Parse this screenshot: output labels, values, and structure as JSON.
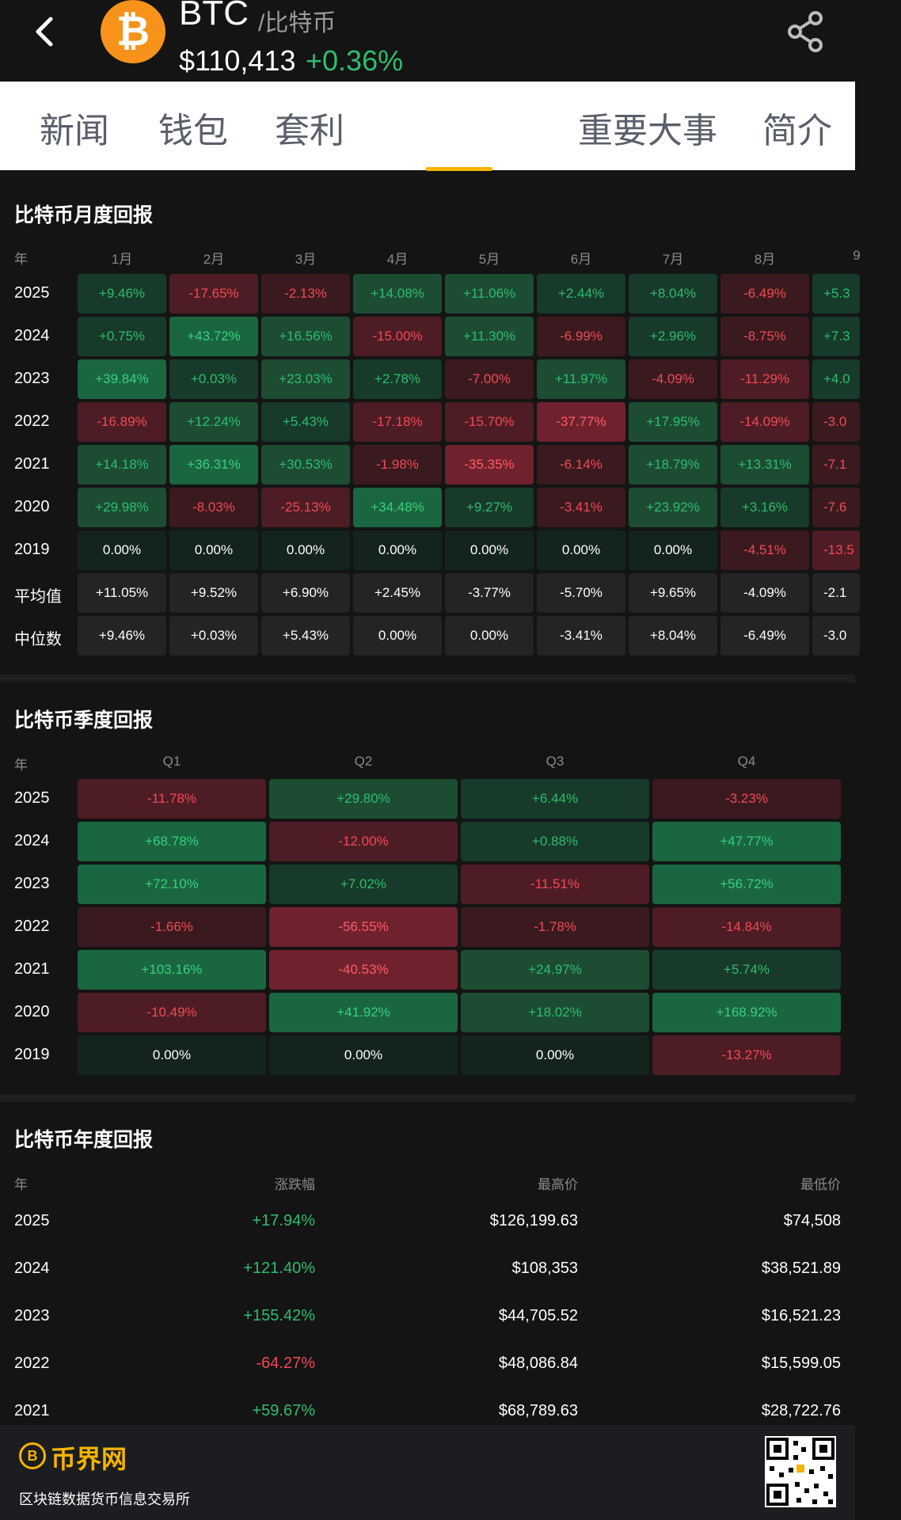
{
  "header": {
    "symbol": "BTC",
    "cn_name": "/比特币",
    "price": "$110,413",
    "change": "+0.36%",
    "logo_glyph": "₿",
    "icons": [
      "back-arrow",
      "bitcoin-logo",
      "share-icon"
    ]
  },
  "tabs": [
    {
      "label": "新闻"
    },
    {
      "label": "钱包"
    },
    {
      "label": "套利"
    },
    {
      "label": "重要大事"
    },
    {
      "label": "简介"
    }
  ],
  "monthly": {
    "title": "比特币月度回报",
    "year_header": "年",
    "months": [
      "1月",
      "2月",
      "3月",
      "4月",
      "5月",
      "6月",
      "7月",
      "8月",
      "9"
    ],
    "rows": [
      {
        "year": "2025",
        "cells": [
          [
            "+9.46%",
            "g1"
          ],
          [
            "-17.65%",
            "r2"
          ],
          [
            "-2.13%",
            "r1"
          ],
          [
            "+14.08%",
            "g2"
          ],
          [
            "+11.06%",
            "g2"
          ],
          [
            "+2.44%",
            "g1"
          ],
          [
            "+8.04%",
            "g1"
          ],
          [
            "-6.49%",
            "r1"
          ],
          [
            "+5.3",
            "g1"
          ]
        ]
      },
      {
        "year": "2024",
        "cells": [
          [
            "+0.75%",
            "g1"
          ],
          [
            "+43.72%",
            "g3"
          ],
          [
            "+16.56%",
            "g2"
          ],
          [
            "-15.00%",
            "r2"
          ],
          [
            "+11.30%",
            "g2"
          ],
          [
            "-6.99%",
            "r1"
          ],
          [
            "+2.96%",
            "g1"
          ],
          [
            "-8.75%",
            "r1"
          ],
          [
            "+7.3",
            "g1"
          ]
        ]
      },
      {
        "year": "2023",
        "cells": [
          [
            "+39.84%",
            "g3"
          ],
          [
            "+0.03%",
            "g1"
          ],
          [
            "+23.03%",
            "g2"
          ],
          [
            "+2.78%",
            "g1"
          ],
          [
            "-7.00%",
            "r1"
          ],
          [
            "+11.97%",
            "g2"
          ],
          [
            "-4.09%",
            "r1"
          ],
          [
            "-11.29%",
            "r2"
          ],
          [
            "+4.0",
            "g1"
          ]
        ]
      },
      {
        "year": "2022",
        "cells": [
          [
            "-16.89%",
            "r2"
          ],
          [
            "+12.24%",
            "g2"
          ],
          [
            "+5.43%",
            "g1"
          ],
          [
            "-17.18%",
            "r2"
          ],
          [
            "-15.70%",
            "r2"
          ],
          [
            "-37.77%",
            "r3"
          ],
          [
            "+17.95%",
            "g2"
          ],
          [
            "-14.09%",
            "r2"
          ],
          [
            "-3.0",
            "r1"
          ]
        ]
      },
      {
        "year": "2021",
        "cells": [
          [
            "+14.18%",
            "g2"
          ],
          [
            "+36.31%",
            "g3"
          ],
          [
            "+30.53%",
            "g2"
          ],
          [
            "-1.98%",
            "r1"
          ],
          [
            "-35.35%",
            "r3"
          ],
          [
            "-6.14%",
            "r1"
          ],
          [
            "+18.79%",
            "g2"
          ],
          [
            "+13.31%",
            "g2"
          ],
          [
            "-7.1",
            "r1"
          ]
        ]
      },
      {
        "year": "2020",
        "cells": [
          [
            "+29.98%",
            "g2"
          ],
          [
            "-8.03%",
            "r1"
          ],
          [
            "-25.13%",
            "r2"
          ],
          [
            "+34.48%",
            "g3"
          ],
          [
            "+9.27%",
            "g1"
          ],
          [
            "-3.41%",
            "r1"
          ],
          [
            "+23.92%",
            "g2"
          ],
          [
            "+3.16%",
            "g1"
          ],
          [
            "-7.6",
            "r1"
          ]
        ]
      },
      {
        "year": "2019",
        "cells": [
          [
            "0.00%",
            "z"
          ],
          [
            "0.00%",
            "z"
          ],
          [
            "0.00%",
            "z"
          ],
          [
            "0.00%",
            "z"
          ],
          [
            "0.00%",
            "z"
          ],
          [
            "0.00%",
            "z"
          ],
          [
            "0.00%",
            "z"
          ],
          [
            "-4.51%",
            "r1"
          ],
          [
            "-13.5",
            "r2"
          ]
        ]
      },
      {
        "year": "平均值",
        "cells": [
          [
            "+11.05%",
            "n"
          ],
          [
            "+9.52%",
            "n"
          ],
          [
            "+6.90%",
            "n"
          ],
          [
            "+2.45%",
            "n"
          ],
          [
            "-3.77%",
            "n"
          ],
          [
            "-5.70%",
            "n"
          ],
          [
            "+9.65%",
            "n"
          ],
          [
            "-4.09%",
            "n"
          ],
          [
            "-2.1",
            "n"
          ]
        ]
      },
      {
        "year": "中位数",
        "cells": [
          [
            "+9.46%",
            "n"
          ],
          [
            "+0.03%",
            "n"
          ],
          [
            "+5.43%",
            "n"
          ],
          [
            "0.00%",
            "n"
          ],
          [
            "0.00%",
            "n"
          ],
          [
            "-3.41%",
            "n"
          ],
          [
            "+8.04%",
            "n"
          ],
          [
            "-6.49%",
            "n"
          ],
          [
            "-3.0",
            "n"
          ]
        ]
      }
    ]
  },
  "quarterly": {
    "title": "比特币季度回报",
    "year_header": "年",
    "quarters": [
      "Q1",
      "Q2",
      "Q3",
      "Q4"
    ],
    "rows": [
      {
        "year": "2025",
        "cells": [
          [
            "-11.78%",
            "r2"
          ],
          [
            "+29.80%",
            "g2"
          ],
          [
            "+6.44%",
            "g1"
          ],
          [
            "-3.23%",
            "r1"
          ]
        ]
      },
      {
        "year": "2024",
        "cells": [
          [
            "+68.78%",
            "g3"
          ],
          [
            "-12.00%",
            "r2"
          ],
          [
            "+0.88%",
            "g1"
          ],
          [
            "+47.77%",
            "g3"
          ]
        ]
      },
      {
        "year": "2023",
        "cells": [
          [
            "+72.10%",
            "g3"
          ],
          [
            "+7.02%",
            "g1"
          ],
          [
            "-11.51%",
            "r2"
          ],
          [
            "+56.72%",
            "g3"
          ]
        ]
      },
      {
        "year": "2022",
        "cells": [
          [
            "-1.66%",
            "r1"
          ],
          [
            "-56.55%",
            "r3"
          ],
          [
            "-1.78%",
            "r1"
          ],
          [
            "-14.84%",
            "r2"
          ]
        ]
      },
      {
        "year": "2021",
        "cells": [
          [
            "+103.16%",
            "g3"
          ],
          [
            "-40.53%",
            "r3"
          ],
          [
            "+24.97%",
            "g2"
          ],
          [
            "+5.74%",
            "g1"
          ]
        ]
      },
      {
        "year": "2020",
        "cells": [
          [
            "-10.49%",
            "r2"
          ],
          [
            "+41.92%",
            "g3"
          ],
          [
            "+18.02%",
            "g2"
          ],
          [
            "+168.92%",
            "g3"
          ]
        ]
      },
      {
        "year": "2019",
        "cells": [
          [
            "0.00%",
            "z"
          ],
          [
            "0.00%",
            "z"
          ],
          [
            "0.00%",
            "z"
          ],
          [
            "-13.27%",
            "r2"
          ]
        ]
      }
    ]
  },
  "yearly": {
    "title": "比特币年度回报",
    "headers": [
      "年",
      "涨跌幅",
      "最高价",
      "最低价"
    ],
    "rows": [
      {
        "year": "2025",
        "change": "+17.94%",
        "dir": "up",
        "high": "$126,199.63",
        "low": "$74,508"
      },
      {
        "year": "2024",
        "change": "+121.40%",
        "dir": "up",
        "high": "$108,353",
        "low": "$38,521.89"
      },
      {
        "year": "2023",
        "change": "+155.42%",
        "dir": "up",
        "high": "$44,705.52",
        "low": "$16,521.23"
      },
      {
        "year": "2022",
        "change": "-64.27%",
        "dir": "down",
        "high": "$48,086.84",
        "low": "$15,599.05"
      },
      {
        "year": "2021",
        "change": "+59.67%",
        "dir": "up",
        "high": "$68,789.63",
        "low": "$28,722.76"
      }
    ]
  },
  "footer": {
    "brand": "币界网",
    "logo_glyph": "B",
    "description": "区块链数据货币信息交易所"
  }
}
